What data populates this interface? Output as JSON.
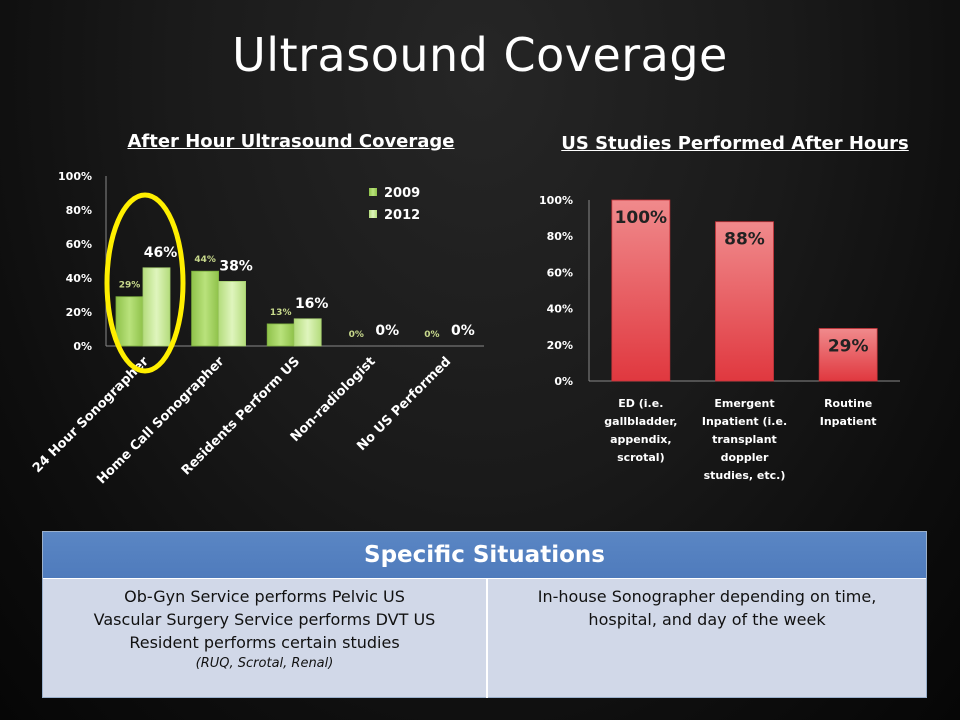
{
  "slide_title": "Ultrasound Coverage",
  "chart_data": [
    {
      "type": "bar",
      "title": "After Hour Ultrasound Coverage",
      "categories": [
        "24 Hour Sonographer",
        "Home Call Sonographer",
        "Residents Perform US",
        "Non-radiologist",
        "No US Performed"
      ],
      "series": [
        {
          "name": "2009",
          "values": [
            29,
            44,
            13,
            0,
            0
          ],
          "labels": [
            "29%",
            "44%",
            "13%",
            "0%",
            "0%"
          ],
          "color": "#a4d65e"
        },
        {
          "name": "2012",
          "values": [
            46,
            38,
            16,
            0,
            0
          ],
          "labels": [
            "46%",
            "38%",
            "16%",
            "0%",
            "0%"
          ],
          "color": "#c8ec96"
        }
      ],
      "yticks": [
        "0%",
        "20%",
        "40%",
        "60%",
        "80%",
        "100%"
      ],
      "ylim": [
        0,
        100
      ],
      "legend_placement": "top-right",
      "annotation": "yellow ellipse highlighting 24 Hour Sonographer",
      "annotation_color": "#ffef00"
    },
    {
      "type": "bar",
      "title": "US Studies Performed After Hours",
      "categories": [
        [
          "ED (i.e.",
          "gallbladder,",
          "appendix,",
          "scrotal)"
        ],
        [
          "Emergent",
          "Inpatient (i.e.",
          "transplant",
          "doppler",
          "studies, etc.)"
        ],
        [
          "Routine",
          "Inpatient"
        ]
      ],
      "values": [
        100,
        88,
        29
      ],
      "labels": [
        "100%",
        "88%",
        "29%"
      ],
      "yticks": [
        "0%",
        "20%",
        "40%",
        "60%",
        "80%",
        "100%"
      ],
      "ylim": [
        0,
        100
      ],
      "color": "#e9444a"
    }
  ],
  "situations": {
    "header": "Specific Situations",
    "left_lines": [
      "Ob-Gyn Service performs Pelvic US",
      "Vascular Surgery Service performs DVT US",
      "Resident performs certain studies"
    ],
    "left_note": "(RUQ, Scrotal, Renal)",
    "right_lines": [
      "In-house Sonographer depending on time,",
      "hospital, and day of the week"
    ]
  }
}
